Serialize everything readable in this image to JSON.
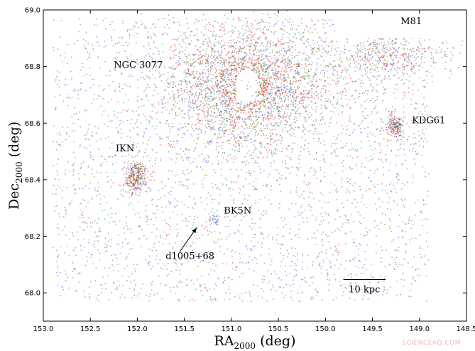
{
  "chart_data": {
    "type": "scatter",
    "title": "",
    "xlabel": "RA",
    "xlabel_sub": "2000",
    "xlabel_unit": " (deg)",
    "ylabel": "Dec",
    "ylabel_sub": "2000",
    "ylabel_unit": " (deg)",
    "xlim": [
      153.0,
      148.5
    ],
    "ylim": [
      67.9,
      69.0
    ],
    "x_ticks": [
      153.0,
      152.5,
      152.0,
      151.5,
      151.0,
      150.5,
      150.0,
      149.5,
      149.0,
      148.5
    ],
    "x_tick_labels": [
      "153.0",
      "152.5",
      "152.0",
      "151.5",
      "151.0",
      "150.5",
      "150.0",
      "149.5",
      "149.0",
      "148.5"
    ],
    "y_ticks": [
      68.0,
      68.2,
      68.4,
      68.6,
      68.8,
      69.0
    ],
    "y_tick_labels": [
      "68.0",
      "68.2",
      "68.4",
      "68.6",
      "68.8",
      "69.0"
    ],
    "grid": false,
    "point_colors": [
      "#5566cc",
      "#cc3322",
      "#339944"
    ],
    "clusters": [
      {
        "name": "NGC 3077",
        "ra": 150.83,
        "dec": 68.73,
        "ra_spread": 0.42,
        "dec_spread": 0.11,
        "hole_ra": 0.13,
        "hole_dec": 0.06,
        "n": 2600,
        "color_weights": [
          0.25,
          0.5,
          0.25
        ]
      },
      {
        "name": "IKN",
        "ra": 152.02,
        "dec": 68.41,
        "ra_spread": 0.06,
        "dec_spread": 0.028,
        "hole_ra": 0.012,
        "hole_dec": 0.006,
        "n": 320,
        "color_weights": [
          0.25,
          0.55,
          0.2
        ]
      },
      {
        "name": "KDG61",
        "ra": 149.26,
        "dec": 68.59,
        "ra_spread": 0.045,
        "dec_spread": 0.022,
        "hole_ra": 0.0,
        "hole_dec": 0.0,
        "n": 200,
        "color_weights": [
          0.35,
          0.5,
          0.15
        ]
      },
      {
        "name": "BK5N",
        "ra": 151.19,
        "dec": 68.26,
        "ra_spread": 0.025,
        "dec_spread": 0.01,
        "hole_ra": 0.0,
        "hole_dec": 0.0,
        "n": 35,
        "color_weights": [
          0.7,
          0.1,
          0.2
        ]
      },
      {
        "name": "M81",
        "ra": 149.25,
        "dec": 68.85,
        "ra_spread": 0.35,
        "dec_spread": 0.05,
        "hole_ra": 0.0,
        "hole_dec": 0.0,
        "n": 500,
        "color_weights": [
          0.4,
          0.45,
          0.15
        ]
      }
    ],
    "field": {
      "ra_range": [
        152.9,
        148.9
      ],
      "dec_range": [
        67.97,
        68.97
      ],
      "n": 3200,
      "color_weights": [
        0.65,
        0.2,
        0.15
      ]
    },
    "empty_region": {
      "ra_range": [
        149.9,
        148.5
      ],
      "dec_range": [
        68.9,
        69.0
      ]
    },
    "annotations": [
      {
        "text": "NGC 3077",
        "ra": 152.25,
        "dec": 68.795
      },
      {
        "text": "M81",
        "ra": 149.2,
        "dec": 68.95
      },
      {
        "text": "KDG61",
        "ra": 149.08,
        "dec": 68.6
      },
      {
        "text": "IKN",
        "ra": 152.23,
        "dec": 68.5
      },
      {
        "text": "BK5N",
        "ra": 151.08,
        "dec": 68.28
      },
      {
        "text": "d1005+68",
        "ra": 151.7,
        "dec": 68.12
      }
    ],
    "arrow": {
      "from": [
        151.55,
        68.145
      ],
      "to": [
        151.37,
        68.23
      ]
    },
    "scale_bar": {
      "label": "10 kpc",
      "ra_start": 149.81,
      "ra_end": 149.36,
      "dec": 68.047
    }
  },
  "watermark": "SCIENCEAQ.COM"
}
